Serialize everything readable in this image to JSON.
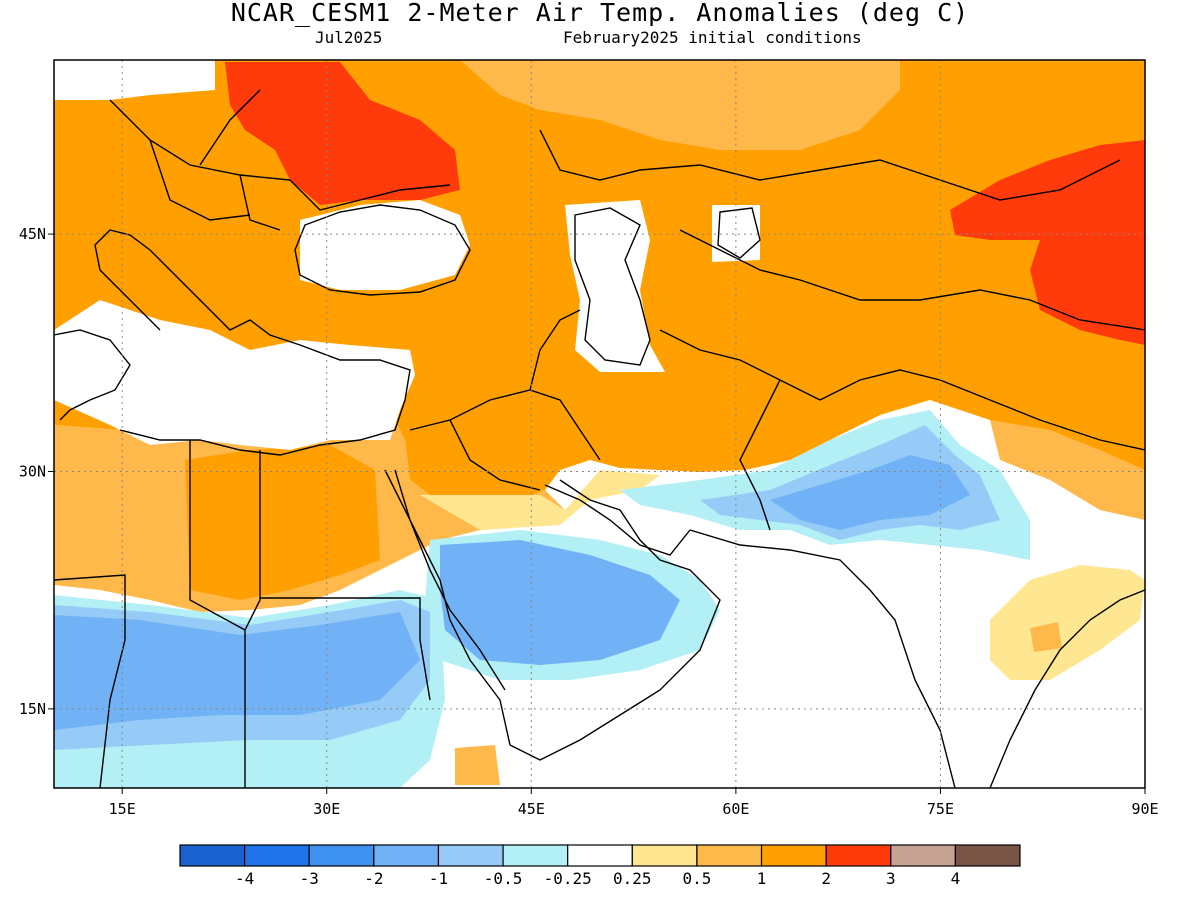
{
  "title": "NCAR_CESM1 2-Meter Air Temp. Anomalies (deg C)",
  "subtitle_left": "Jul2025",
  "subtitle_right": "February2025 initial conditions",
  "map": {
    "lon_range": [
      10,
      90
    ],
    "lat_range": [
      10,
      56
    ],
    "x_ticks": [
      {
        "value": 15,
        "label": "15E"
      },
      {
        "value": 30,
        "label": "30E"
      },
      {
        "value": 45,
        "label": "45E"
      },
      {
        "value": 60,
        "label": "60E"
      },
      {
        "value": 75,
        "label": "75E"
      },
      {
        "value": 90,
        "label": "90E"
      }
    ],
    "y_ticks": [
      {
        "value": 45,
        "label": "45N"
      },
      {
        "value": 30,
        "label": "30N"
      },
      {
        "value": 15,
        "label": "15N"
      }
    ],
    "gridlines": "dotted"
  },
  "colorbar": {
    "colors": [
      "#1961cf",
      "#1f73ea",
      "#3f91f0",
      "#70b2f5",
      "#97cbf7",
      "#b2f0f5",
      "#ffffff",
      "#ffe792",
      "#ffb84a",
      "#ffa000",
      "#ff3b0c",
      "#c6a393",
      "#7a5547"
    ],
    "labels": [
      "-4",
      "-3",
      "-2",
      "-1",
      "-0.5",
      "-0.25",
      "0.25",
      "0.5",
      "1",
      "2",
      "3",
      "4"
    ]
  },
  "colors": {
    "warm_2": "#ffa000",
    "warm_1": "#ffb84a",
    "warm_05": "#ffe792",
    "hot_3": "#ff3b0c",
    "cool_025": "#b2f0f5",
    "cool_05": "#97cbf7",
    "cool_1": "#70b2f5",
    "cool_2": "#3f91f0",
    "neutral": "#ffffff"
  }
}
